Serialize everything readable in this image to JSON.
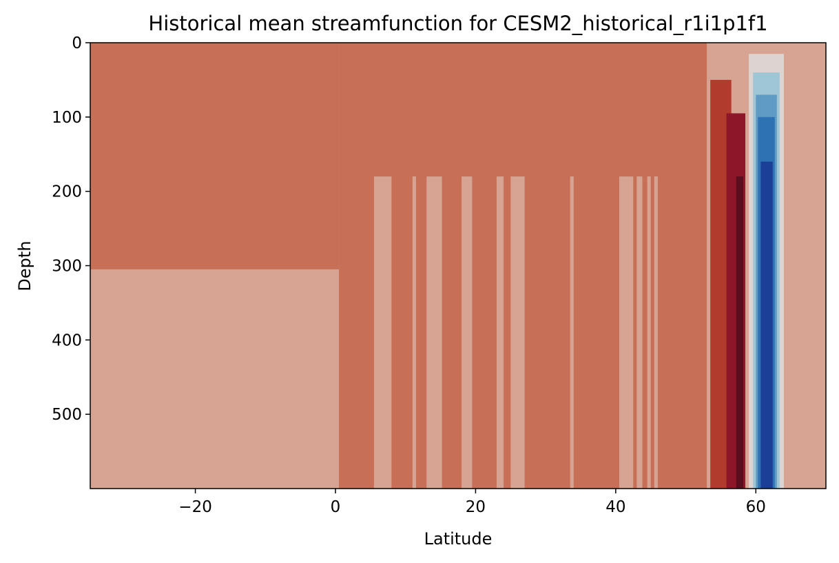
{
  "chart_data": {
    "type": "heatmap",
    "subtype": "filled-contour",
    "title": "Historical mean streamfunction for CESM2_historical_r1i1p1f1",
    "xlabel": "Latitude",
    "ylabel": "Depth",
    "xlim": [
      -35,
      70
    ],
    "ylim": [
      600,
      0
    ],
    "y_inverted": true,
    "grid": false,
    "legend": "none",
    "xticks": [
      -20,
      0,
      20,
      40,
      60
    ],
    "xtick_labels": [
      "−20",
      "0",
      "20",
      "40",
      "60"
    ],
    "yticks": [
      0,
      100,
      200,
      300,
      400,
      500
    ],
    "ytick_labels": [
      "0",
      "100",
      "200",
      "300",
      "400",
      "500"
    ],
    "colormap": "diverging blue-white-red (reversed)",
    "colors": {
      "level_pos_weak": "#d7a392",
      "level_pos_low": "#c77057",
      "level_pos_mid": "#b13c2e",
      "level_pos_high": "#8d1628",
      "level_pos_max": "#5a0d1e",
      "level_near_zero": "#ddd3d0",
      "level_neg_1": "#9fc6d6",
      "level_neg_2": "#5f9bc4",
      "level_neg_3": "#2f72b4",
      "level_neg_min": "#1b3f96"
    },
    "regions": [
      {
        "level": "level_pos_weak",
        "x": [
          -35,
          70
        ],
        "depth": [
          0,
          600
        ]
      },
      {
        "level": "level_pos_low",
        "x": [
          -35,
          0.5
        ],
        "depth": [
          0,
          305
        ]
      },
      {
        "level": "level_pos_low",
        "x": [
          0.5,
          53
        ],
        "depth": [
          0,
          600
        ]
      },
      {
        "level": "level_pos_mid",
        "x": [
          53.5,
          56.5
        ],
        "depth": [
          50,
          600
        ]
      },
      {
        "level": "level_pos_high",
        "x": [
          55.8,
          58.5
        ],
        "depth": [
          95,
          600
        ]
      },
      {
        "level": "level_pos_max",
        "x": [
          57.2,
          58.2
        ],
        "depth": [
          180,
          600
        ]
      },
      {
        "level": "level_near_zero",
        "x": [
          59,
          64
        ],
        "depth": [
          15,
          600
        ]
      },
      {
        "level": "level_neg_1",
        "x": [
          59.6,
          63.4
        ],
        "depth": [
          40,
          600
        ]
      },
      {
        "level": "level_neg_2",
        "x": [
          60,
          63
        ],
        "depth": [
          70,
          600
        ]
      },
      {
        "level": "level_neg_3",
        "x": [
          60.3,
          62.7
        ],
        "depth": [
          100,
          600
        ]
      },
      {
        "level": "level_neg_min",
        "x": [
          60.7,
          62.4
        ],
        "depth": [
          160,
          600
        ]
      }
    ],
    "weak_intrusions": [
      [
        5.5,
        8
      ],
      [
        11,
        11.5
      ],
      [
        13,
        15.2
      ],
      [
        18,
        19.5
      ],
      [
        23,
        24
      ],
      [
        25,
        27
      ],
      [
        33.5,
        34
      ],
      [
        40.5,
        42.5
      ],
      [
        43,
        43.8
      ],
      [
        44.5,
        45
      ],
      [
        45.5,
        46
      ]
    ]
  }
}
